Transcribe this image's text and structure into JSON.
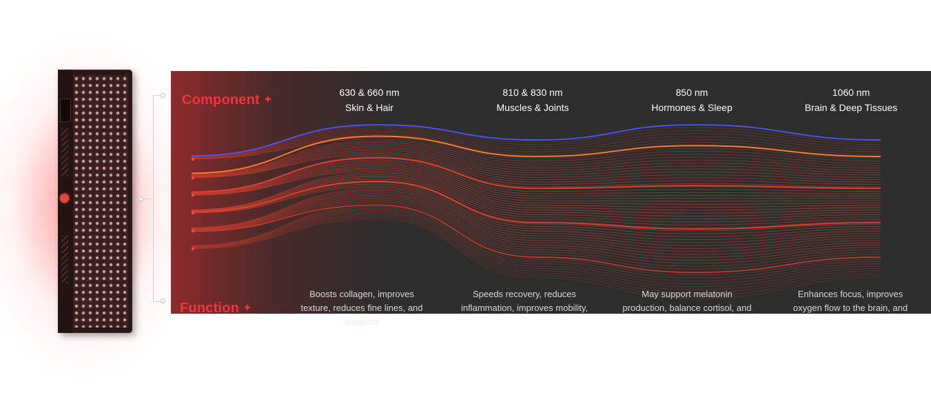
{
  "labels": {
    "component": "Component",
    "function": "Function",
    "star_glyph": "✦"
  },
  "wavelengths": [
    {
      "nm": "630 & 660 nm",
      "name": "Skin & Hair",
      "desc_line1": "Boosts collagen, improves",
      "desc_line2": "texture, reduces fine lines, and",
      "desc_line3": "supports"
    },
    {
      "nm": "810 & 830 nm",
      "name": "Muscles & Joints",
      "desc_line1": "Speeds recovery, reduces",
      "desc_line2": "inflammation, improves mobility,",
      "desc_line3": ""
    },
    {
      "nm": "850 nm",
      "name": "Hormones & Sleep",
      "desc_line1": "May support melatonin",
      "desc_line2": "production, balance cortisol, and",
      "desc_line3": ""
    },
    {
      "nm": "1060 nm",
      "name": "Brain & Deep Tissues",
      "desc_line1": "Enhances focus, improves",
      "desc_line2": "oxygen flow to the brain, and",
      "desc_line3": ""
    }
  ],
  "colors": {
    "accent_red": "#f0353a",
    "wave_blue": "#4b55e8",
    "wave_orange": "#ff7a2e",
    "panel_bg": "#2d2d2d"
  }
}
